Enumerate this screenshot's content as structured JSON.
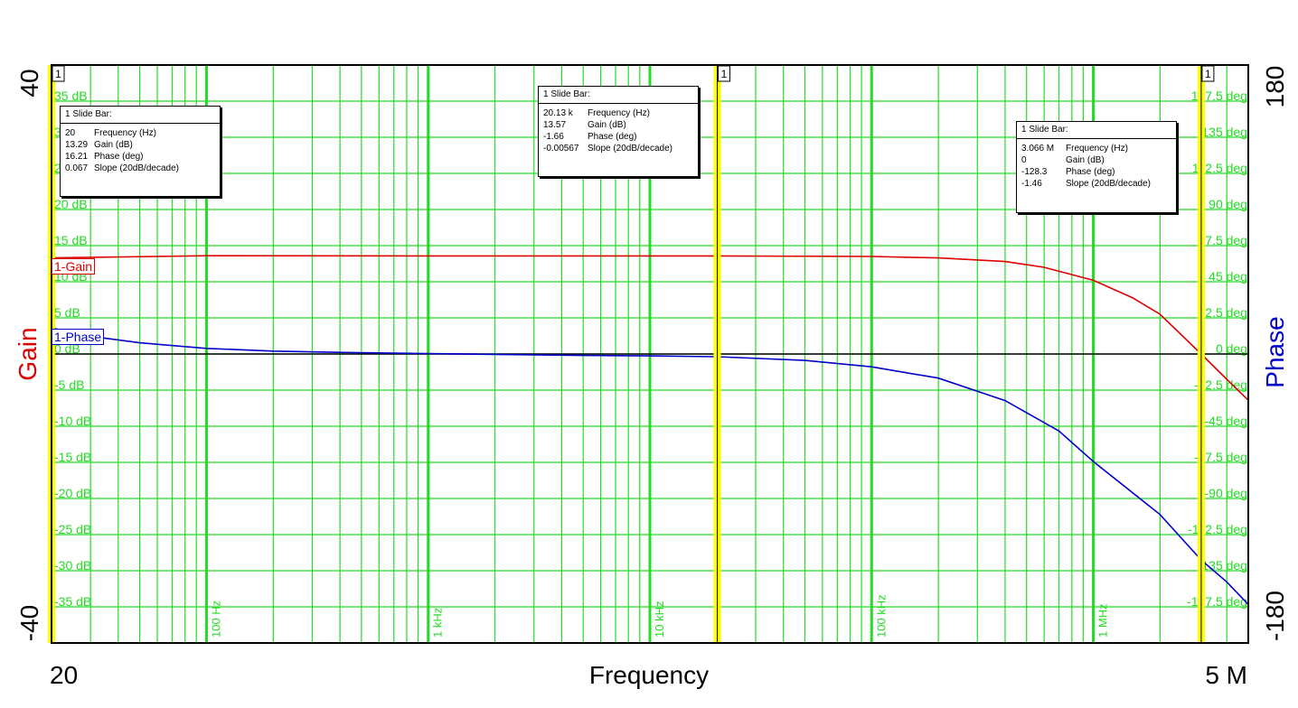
{
  "chart_data": {
    "type": "line",
    "xlabel": "Frequency",
    "x_start_label": "20",
    "x_end_label": "5 M",
    "xlim": [
      20,
      5000000
    ],
    "x_scale": "log",
    "x_tick_labels": [
      "100 Hz",
      "1 kHz",
      "10 kHz",
      "100 kHz",
      "1 MHz"
    ],
    "left_axis": {
      "label": "Gain",
      "color": "#dd0000",
      "ylim": [
        -40,
        40
      ],
      "end_labels": [
        "40",
        "-40"
      ],
      "tick_labels": [
        "35 dB",
        "30 dB",
        "25 dB",
        "20 dB",
        "15 dB",
        "10 dB",
        "5 dB",
        "0 dB",
        "-5 dB",
        "-10 dB",
        "-15 dB",
        "-20 dB",
        "-25 dB",
        "-30 dB",
        "-35 dB"
      ]
    },
    "right_axis": {
      "label": "Phase",
      "color": "#0000cc",
      "ylim": [
        -180,
        180
      ],
      "end_labels": [
        "180",
        "-180"
      ],
      "tick_labels": [
        "157.5 deg",
        "135 deg",
        "112.5 deg",
        "90 deg",
        "67.5 deg",
        "45 deg",
        "22.5 deg",
        "0 deg",
        "-22.5 deg",
        "-45 deg",
        "-67.5 deg",
        "-90 deg",
        "-112.5 deg",
        "-135 deg",
        "-157.5 deg"
      ]
    },
    "grid": true,
    "grid_color": "#22dd22",
    "series": [
      {
        "name": "1-Gain",
        "axis": "left",
        "color": "#dd0000",
        "x": [
          20,
          100,
          1000,
          10000,
          20130,
          100000,
          200000,
          400000,
          600000,
          1000000,
          1500000,
          2000000,
          3066000,
          4000000,
          5000000
        ],
        "y": [
          13.3,
          13.6,
          13.57,
          13.57,
          13.57,
          13.5,
          13.3,
          12.8,
          12.0,
          10.2,
          7.8,
          5.5,
          0,
          -3.5,
          -6.4
        ]
      },
      {
        "name": "1-Phase",
        "axis": "right",
        "color": "#0000cc",
        "x": [
          20,
          30,
          50,
          100,
          200,
          500,
          1000,
          2000,
          5000,
          10000,
          20130,
          50000,
          100000,
          200000,
          400000,
          700000,
          1000000,
          2000000,
          3066000,
          4000000,
          5000000
        ],
        "y": [
          16.21,
          11.0,
          7.0,
          3.5,
          1.8,
          0.8,
          0.2,
          -0.2,
          -0.9,
          -1.2,
          -1.66,
          -4.0,
          -8.0,
          -15.0,
          -29.0,
          -48.0,
          -67.0,
          -100.0,
          -128.3,
          -142.0,
          -156.0
        ]
      }
    ],
    "slide_bars": [
      {
        "marker": "1",
        "title": "1  Slide Bar:",
        "frequency": 20,
        "rows": [
          {
            "value": "20",
            "label": "Frequency (Hz)"
          },
          {
            "value": "13.29",
            "label": "Gain (dB)"
          },
          {
            "value": "16.21",
            "label": "Phase (deg)"
          },
          {
            "value": "0.067",
            "label": "Slope (20dB/decade)"
          }
        ]
      },
      {
        "marker": "1",
        "title": "1  Slide Bar:",
        "frequency": 20130,
        "rows": [
          {
            "value": "20.13 k",
            "label": "Frequency (Hz)"
          },
          {
            "value": "13.57",
            "label": "Gain (dB)"
          },
          {
            "value": "-1.66",
            "label": "Phase (deg)"
          },
          {
            "value": "-0.00567",
            "label": "Slope (20dB/decade)"
          }
        ]
      },
      {
        "marker": "1",
        "title": "1  Slide Bar:",
        "frequency": 3066000,
        "rows": [
          {
            "value": "3.066 M",
            "label": "Frequency (Hz)"
          },
          {
            "value": "0",
            "label": "Gain (dB)"
          },
          {
            "value": "-128.3",
            "label": "Phase (deg)"
          },
          {
            "value": "-1.46",
            "label": "Slope (20dB/decade)"
          }
        ]
      }
    ]
  }
}
